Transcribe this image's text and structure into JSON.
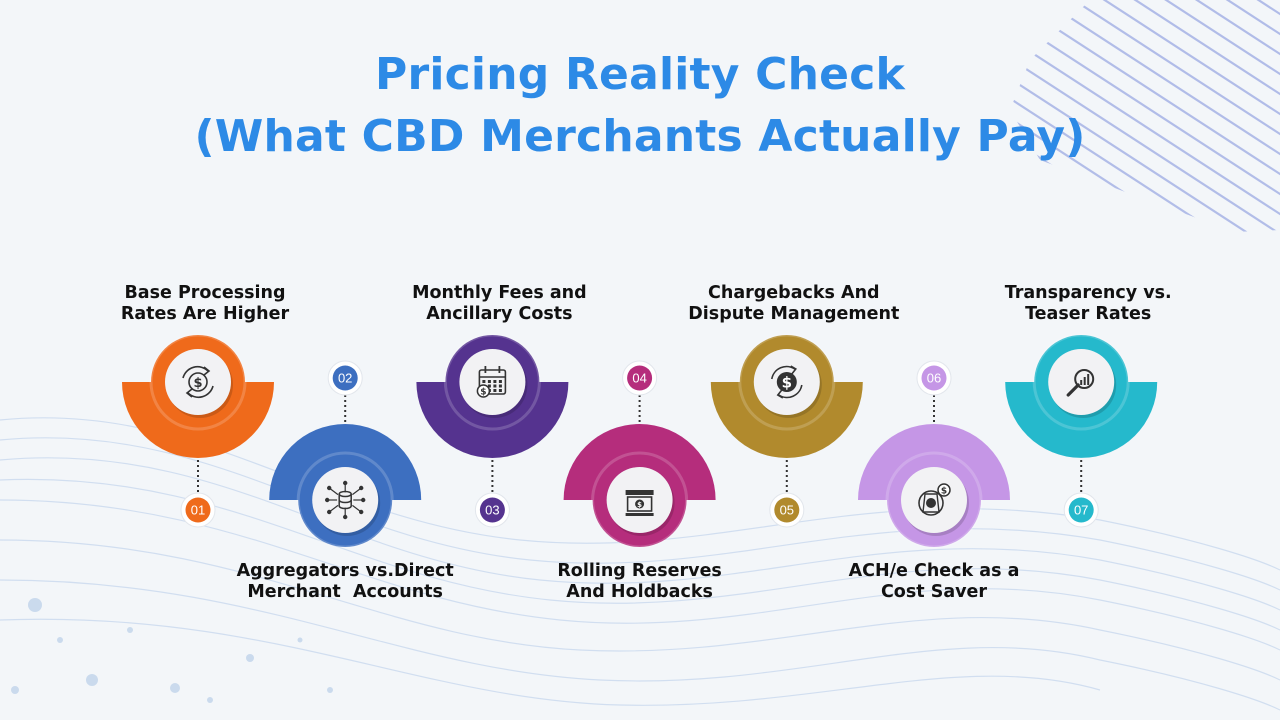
{
  "title": {
    "line1": "Pricing Reality Check",
    "line2": "(What CBD Merchants Actually Pay)",
    "color": "#2d8ae6"
  },
  "steps": [
    {
      "num": "01",
      "line1": "Base Processing",
      "line2": "Rates Are Higher",
      "color": "#ef6a1b",
      "icon": "dollar-cycle-icon",
      "position": "top"
    },
    {
      "num": "02",
      "line1": "Aggregators vs.Direct",
      "line2": "Merchant  Accounts",
      "color": "#3d6fc0",
      "icon": "network-database-icon",
      "position": "bottom"
    },
    {
      "num": "03",
      "line1": "Monthly Fees and",
      "line2": "Ancillary Costs",
      "color": "#55338f",
      "icon": "calendar-money-icon",
      "position": "top"
    },
    {
      "num": "04",
      "line1": "Rolling Reserves",
      "line2": "And Holdbacks",
      "color": "#b52d7c",
      "icon": "bank-reserve-icon",
      "position": "bottom"
    },
    {
      "num": "05",
      "line1": "Chargebacks And",
      "line2": "Dispute Management",
      "color": "#b18a2d",
      "icon": "refund-dollar-icon",
      "position": "top"
    },
    {
      "num": "06",
      "line1": "ACH/e Check as a",
      "line2": "Cost Saver",
      "color": "#c596e6",
      "icon": "check-payment-icon",
      "position": "bottom"
    },
    {
      "num": "07",
      "line1": "Transparency vs.",
      "line2": "Teaser Rates",
      "color": "#25b9cc",
      "icon": "magnify-chart-icon",
      "position": "top"
    }
  ]
}
